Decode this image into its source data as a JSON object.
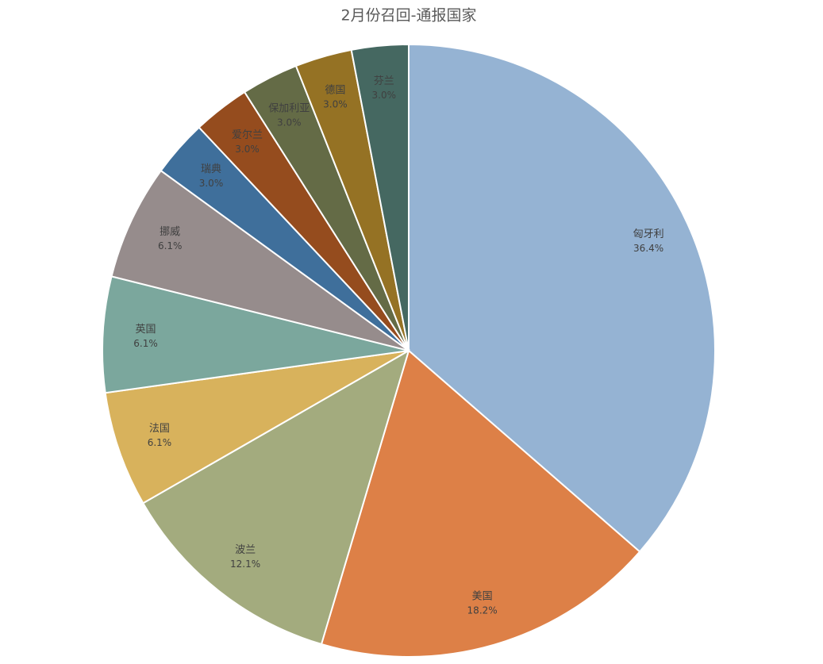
{
  "chart_data": {
    "type": "pie",
    "title": "2月份召回-通报国家",
    "categories": [
      "匈牙利",
      "美国",
      "波兰",
      "法国",
      "英国",
      "挪威",
      "瑞典",
      "爱尔兰",
      "保加利亚",
      "德国",
      "芬兰"
    ],
    "values": [
      36.4,
      18.2,
      12.1,
      6.1,
      6.1,
      6.1,
      3.0,
      3.0,
      3.0,
      3.0,
      3.0
    ],
    "value_labels": [
      "36.4%",
      "18.2%",
      "12.1%",
      "6.1%",
      "6.1%",
      "6.1%",
      "3.0%",
      "3.0%",
      "3.0%",
      "3.0%",
      "3.0%"
    ],
    "colors": [
      "#95b3d3",
      "#dd8047",
      "#a3ab7e",
      "#d8b25c",
      "#7ba79d",
      "#968c8c",
      "#3f6f9b",
      "#954c1e",
      "#646b46",
      "#957224",
      "#456861"
    ]
  }
}
